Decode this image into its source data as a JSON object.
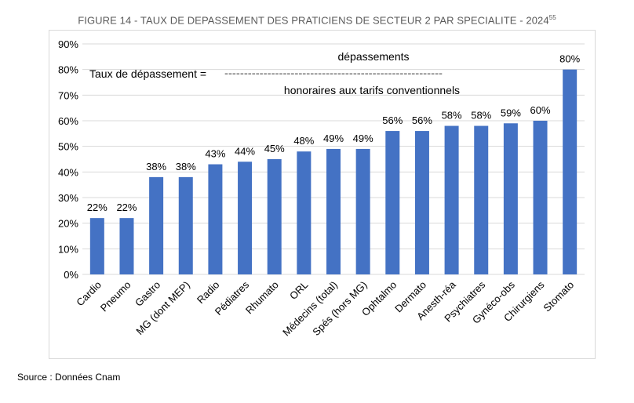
{
  "title": "FIGURE 14 - TAUX DE DEPASSEMENT DES PRATICIENS DE SECTEUR 2 PAR SPECIALITE - 2024",
  "title_footnote": "55",
  "source": "Source : Données Cnam",
  "chart_data": {
    "type": "bar",
    "categories": [
      "Cardio",
      "Pneumo",
      "Gastro",
      "MG (dont MEP)",
      "Radio",
      "Pédiatres",
      "Rhumato",
      "ORL",
      "Médecins (total)",
      "Spés (hors MG)",
      "Ophtalmo",
      "Dermato",
      "Anesth-réa",
      "Psychiatres",
      "Gynéco-obs",
      "Chirurgiens",
      "Stomato"
    ],
    "values": [
      22,
      22,
      38,
      38,
      43,
      44,
      45,
      48,
      49,
      49,
      56,
      56,
      58,
      58,
      59,
      60,
      80
    ],
    "data_labels": [
      "22%",
      "22%",
      "38%",
      "38%",
      "43%",
      "44%",
      "45%",
      "48%",
      "49%",
      "49%",
      "56%",
      "56%",
      "58%",
      "58%",
      "59%",
      "60%",
      "80%"
    ],
    "ylim": [
      0,
      90
    ],
    "yticks": [
      "0%",
      "10%",
      "20%",
      "30%",
      "40%",
      "50%",
      "60%",
      "70%",
      "80%",
      "90%"
    ],
    "grid": true,
    "bar_color": "#4472c4",
    "annotation": {
      "label": "Taux de dépassement =",
      "numerator": "dépassements",
      "fraction_line": "--------------------------------------------------------",
      "denominator": "honoraires aux tarifs conventionnels"
    }
  }
}
